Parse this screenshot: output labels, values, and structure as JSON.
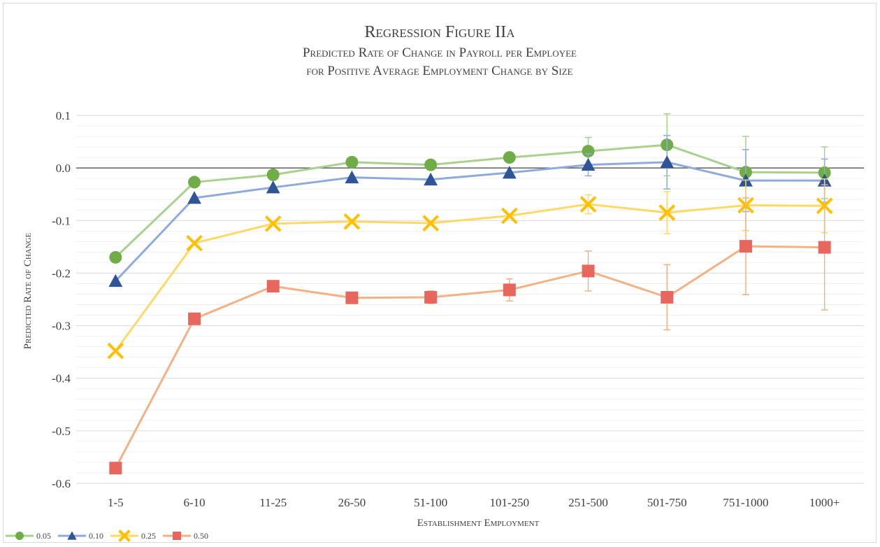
{
  "chart_data": {
    "type": "line",
    "title": "Regression Figure IIa",
    "subtitle_lines": [
      "Predicted Rate of Change in Payroll per Employee",
      "for Positive Average Employment Change by Size"
    ],
    "xlabel": "Establishment Employment",
    "ylabel": "Predicted Rate of Change",
    "ylim": [
      -0.6,
      0.1
    ],
    "y_ticks": [
      "0.1",
      "0.0",
      "-0.1",
      "-0.2",
      "-0.3",
      "-0.4",
      "-0.5",
      "-0.6"
    ],
    "y_tick_values": [
      0.1,
      0.0,
      -0.1,
      -0.2,
      -0.3,
      -0.4,
      -0.5,
      -0.6
    ],
    "grid": true,
    "legend_position": "bottom-left",
    "categories": [
      "1-5",
      "6-10",
      "11-25",
      "26-50",
      "51-100",
      "101-250",
      "251-500",
      "501-750",
      "751-1000",
      "1000+"
    ],
    "series": [
      {
        "name": "0.05",
        "marker": "circle",
        "line_color": "#a9d18e",
        "marker_color": "#70ad47",
        "values": [
          -0.17,
          -0.027,
          -0.013,
          0.011,
          0.006,
          0.02,
          0.032,
          0.044,
          -0.008,
          -0.009
        ],
        "err": [
          null,
          null,
          null,
          null,
          null,
          null,
          0.026,
          0.059,
          0.068,
          0.049
        ]
      },
      {
        "name": "0.10",
        "marker": "triangle",
        "line_color": "#8faadc",
        "marker_color": "#2f5597",
        "values": [
          -0.215,
          -0.057,
          -0.037,
          -0.018,
          -0.022,
          -0.009,
          0.006,
          0.011,
          -0.024,
          -0.024
        ],
        "err": [
          null,
          null,
          null,
          null,
          null,
          null,
          0.021,
          0.051,
          0.059,
          0.041
        ]
      },
      {
        "name": "0.25",
        "marker": "x",
        "line_color": "#ffd966",
        "marker_color": "#ffc000",
        "values": [
          -0.348,
          -0.143,
          -0.106,
          -0.102,
          -0.105,
          -0.091,
          -0.069,
          -0.085,
          -0.071,
          -0.072
        ],
        "err": [
          null,
          null,
          null,
          null,
          null,
          null,
          0.018,
          0.04,
          0.048,
          0.051
        ]
      },
      {
        "name": "0.50",
        "marker": "square",
        "line_color": "#f4b183",
        "marker_color": "#e7675e",
        "values": [
          -0.571,
          -0.287,
          -0.225,
          -0.247,
          -0.246,
          -0.232,
          -0.196,
          -0.246,
          -0.149,
          -0.151
        ],
        "err": [
          null,
          null,
          null,
          null,
          0.012,
          0.021,
          0.038,
          0.062,
          0.092,
          0.119
        ]
      }
    ]
  }
}
